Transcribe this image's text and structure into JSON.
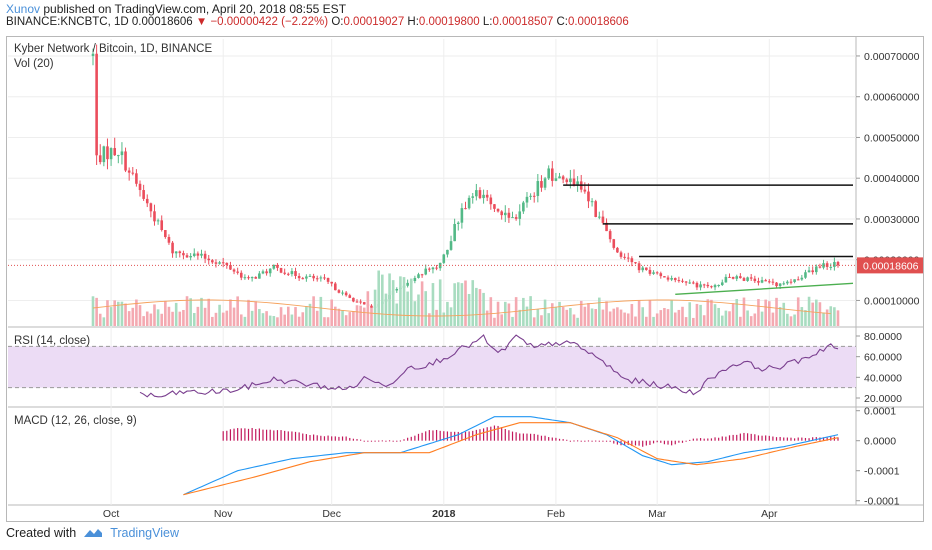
{
  "header": {
    "user": "Xunov",
    "published_text": "published on TradingView.com, April 20, 2018 08:55 EST",
    "symbol": "BINANCE:KNCBTC, 1D",
    "last": "0.00018606",
    "change_arrow": "▼",
    "change": "−0.00000422 (−2.22%)",
    "open_label": "O:",
    "open": "0.00019027",
    "high_label": "H:",
    "high": "0.00019800",
    "low_label": "L:",
    "low": "0.00018507",
    "close_label": "C:",
    "close": "0.00018606"
  },
  "main_pane": {
    "title": "Kyber Network / Bitcoin, 1D, BINANCE",
    "vol_label": "Vol (20)",
    "last_price_tag": "0.00018606"
  },
  "rsi_pane": {
    "title": "RSI (14, close)"
  },
  "macd_pane": {
    "title": "MACD (12, 26, close, 9)"
  },
  "footer": {
    "created_with": "Created with",
    "brand": "TradingView"
  },
  "colors": {
    "up": "#53b987",
    "down": "#eb4d5c",
    "vol_up": "#a8dcc0",
    "vol_down": "#f4a9b1",
    "rsi_line": "#7a3f8f",
    "rsi_band": "#ecdcf5",
    "macd_line": "#2196f3",
    "signal_line": "#ff7f22",
    "hist": "#c2185b",
    "trendline": "#4caf50",
    "resistance": "#111111"
  },
  "chart_data": [
    {
      "type": "candlestick",
      "title": "Kyber Network / Bitcoin, 1D, BINANCE",
      "x_ticks": [
        "Oct",
        "Nov",
        "Dec",
        "2018",
        "Feb",
        "Mar",
        "Apr"
      ],
      "y_ticks": [
        "0.00070000",
        "0.00060000",
        "0.00050000",
        "0.00040000",
        "0.00030000",
        "0.00020000",
        "0.00010000"
      ],
      "ylim": [
        2e-05,
        0.00072
      ],
      "grid": true,
      "close_keyframes": [
        [
          "2017-09-26",
          0.0007
        ],
        [
          "2017-09-27",
          0.00045
        ],
        [
          "2017-09-29",
          0.00046
        ],
        [
          "2017-10-03",
          0.00047
        ],
        [
          "2017-10-07",
          0.0004
        ],
        [
          "2017-10-12",
          0.00032
        ],
        [
          "2017-10-18",
          0.00022
        ],
        [
          "2017-10-25",
          0.00021
        ],
        [
          "2017-11-01",
          0.00019
        ],
        [
          "2017-11-08",
          0.00015
        ],
        [
          "2017-11-15",
          0.00018
        ],
        [
          "2017-11-22",
          0.00016
        ],
        [
          "2017-11-29",
          0.00015
        ],
        [
          "2017-12-05",
          0.00011
        ],
        [
          "2017-12-12",
          8e-05
        ],
        [
          "2017-12-18",
          0.00012
        ],
        [
          "2017-12-24",
          0.00016
        ],
        [
          "2017-12-31",
          0.00019
        ],
        [
          "2018-01-06",
          0.00032
        ],
        [
          "2018-01-10",
          0.00036
        ],
        [
          "2018-01-15",
          0.00033
        ],
        [
          "2018-01-20",
          0.0003
        ],
        [
          "2018-01-25",
          0.00036
        ],
        [
          "2018-01-30",
          0.00041
        ],
        [
          "2018-02-03",
          0.0004
        ],
        [
          "2018-02-08",
          0.00038
        ],
        [
          "2018-02-13",
          0.0003
        ],
        [
          "2018-02-18",
          0.00022
        ],
        [
          "2018-02-24",
          0.00018
        ],
        [
          "2018-03-02",
          0.00016
        ],
        [
          "2018-03-10",
          0.00014
        ],
        [
          "2018-03-16",
          0.00013
        ],
        [
          "2018-03-21",
          0.00016
        ],
        [
          "2018-03-27",
          0.00015
        ],
        [
          "2018-04-03",
          0.00014
        ],
        [
          "2018-04-10",
          0.00016
        ],
        [
          "2018-04-16",
          0.00019
        ],
        [
          "2018-04-20",
          0.00018606
        ]
      ],
      "resistance_lines": [
        {
          "from": "2018-02-03",
          "to": "2018-04-20",
          "value": 0.000383
        },
        {
          "from": "2018-02-14",
          "to": "2018-04-20",
          "value": 0.000288
        },
        {
          "from": "2018-02-24",
          "to": "2018-04-20",
          "value": 0.000208
        }
      ],
      "support_trendline": {
        "from": [
          "2018-03-06",
          0.000115
        ],
        "to": [
          "2018-04-20",
          0.000142
        ]
      }
    },
    {
      "type": "line",
      "title": "RSI (14, close)",
      "y_ticks": [
        "80.0000",
        "60.0000",
        "40.0000",
        "20.0000"
      ],
      "ylim": [
        18,
        84
      ],
      "bands": [
        30,
        70
      ],
      "keyframes": [
        [
          "2017-10-09",
          24
        ],
        [
          "2017-10-14",
          21
        ],
        [
          "2017-10-21",
          26
        ],
        [
          "2017-10-26",
          25
        ],
        [
          "2017-11-05",
          28
        ],
        [
          "2017-11-15",
          38
        ],
        [
          "2017-11-25",
          33
        ],
        [
          "2017-12-05",
          28
        ],
        [
          "2017-12-11",
          40
        ],
        [
          "2017-12-16",
          30
        ],
        [
          "2017-12-22",
          50
        ],
        [
          "2017-12-28",
          52
        ],
        [
          "2018-01-05",
          66
        ],
        [
          "2018-01-12",
          78
        ],
        [
          "2018-01-16",
          62
        ],
        [
          "2018-01-21",
          79
        ],
        [
          "2018-01-26",
          68
        ],
        [
          "2018-02-01",
          74
        ],
        [
          "2018-02-07",
          71
        ],
        [
          "2018-02-14",
          55
        ],
        [
          "2018-02-20",
          38
        ],
        [
          "2018-02-27",
          34
        ],
        [
          "2018-03-05",
          30
        ],
        [
          "2018-03-11",
          25
        ],
        [
          "2018-03-18",
          45
        ],
        [
          "2018-03-24",
          55
        ],
        [
          "2018-03-31",
          48
        ],
        [
          "2018-04-06",
          52
        ],
        [
          "2018-04-13",
          62
        ],
        [
          "2018-04-18",
          72
        ],
        [
          "2018-04-20",
          66
        ]
      ]
    },
    {
      "type": "line",
      "title": "MACD (12, 26, close, 9)",
      "y_ticks": [
        "0.0001",
        "0.0000",
        "-0.0001",
        "-0.0001"
      ],
      "ylim": [
        -0.0002,
        0.00011
      ],
      "series": [
        {
          "role": "macd",
          "keyframes": [
            [
              "2017-10-21",
              -0.00018
            ],
            [
              "2017-11-05",
              -0.0001
            ],
            [
              "2017-11-20",
              -6e-05
            ],
            [
              "2017-12-05",
              -4e-05
            ],
            [
              "2017-12-20",
              -4e-05
            ],
            [
              "2018-01-05",
              2e-05
            ],
            [
              "2018-01-15",
              8e-05
            ],
            [
              "2018-01-25",
              8e-05
            ],
            [
              "2018-02-05",
              6e-05
            ],
            [
              "2018-02-15",
              2e-05
            ],
            [
              "2018-02-25",
              -5e-05
            ],
            [
              "2018-03-05",
              -8e-05
            ],
            [
              "2018-03-15",
              -7e-05
            ],
            [
              "2018-03-25",
              -4e-05
            ],
            [
              "2018-04-05",
              -2e-05
            ],
            [
              "2018-04-20",
              2e-05
            ]
          ]
        },
        {
          "role": "signal",
          "keyframes": [
            [
              "2017-10-21",
              -0.00018
            ],
            [
              "2017-11-10",
              -0.00012
            ],
            [
              "2017-11-25",
              -7e-05
            ],
            [
              "2017-12-10",
              -4e-05
            ],
            [
              "2017-12-28",
              -4e-05
            ],
            [
              "2018-01-10",
              2e-05
            ],
            [
              "2018-01-22",
              6e-05
            ],
            [
              "2018-02-05",
              6e-05
            ],
            [
              "2018-02-18",
              1e-05
            ],
            [
              "2018-03-01",
              -6e-05
            ],
            [
              "2018-03-12",
              -8e-05
            ],
            [
              "2018-03-25",
              -6e-05
            ],
            [
              "2018-04-08",
              -2e-05
            ],
            [
              "2018-04-20",
              1e-05
            ]
          ]
        }
      ]
    }
  ]
}
